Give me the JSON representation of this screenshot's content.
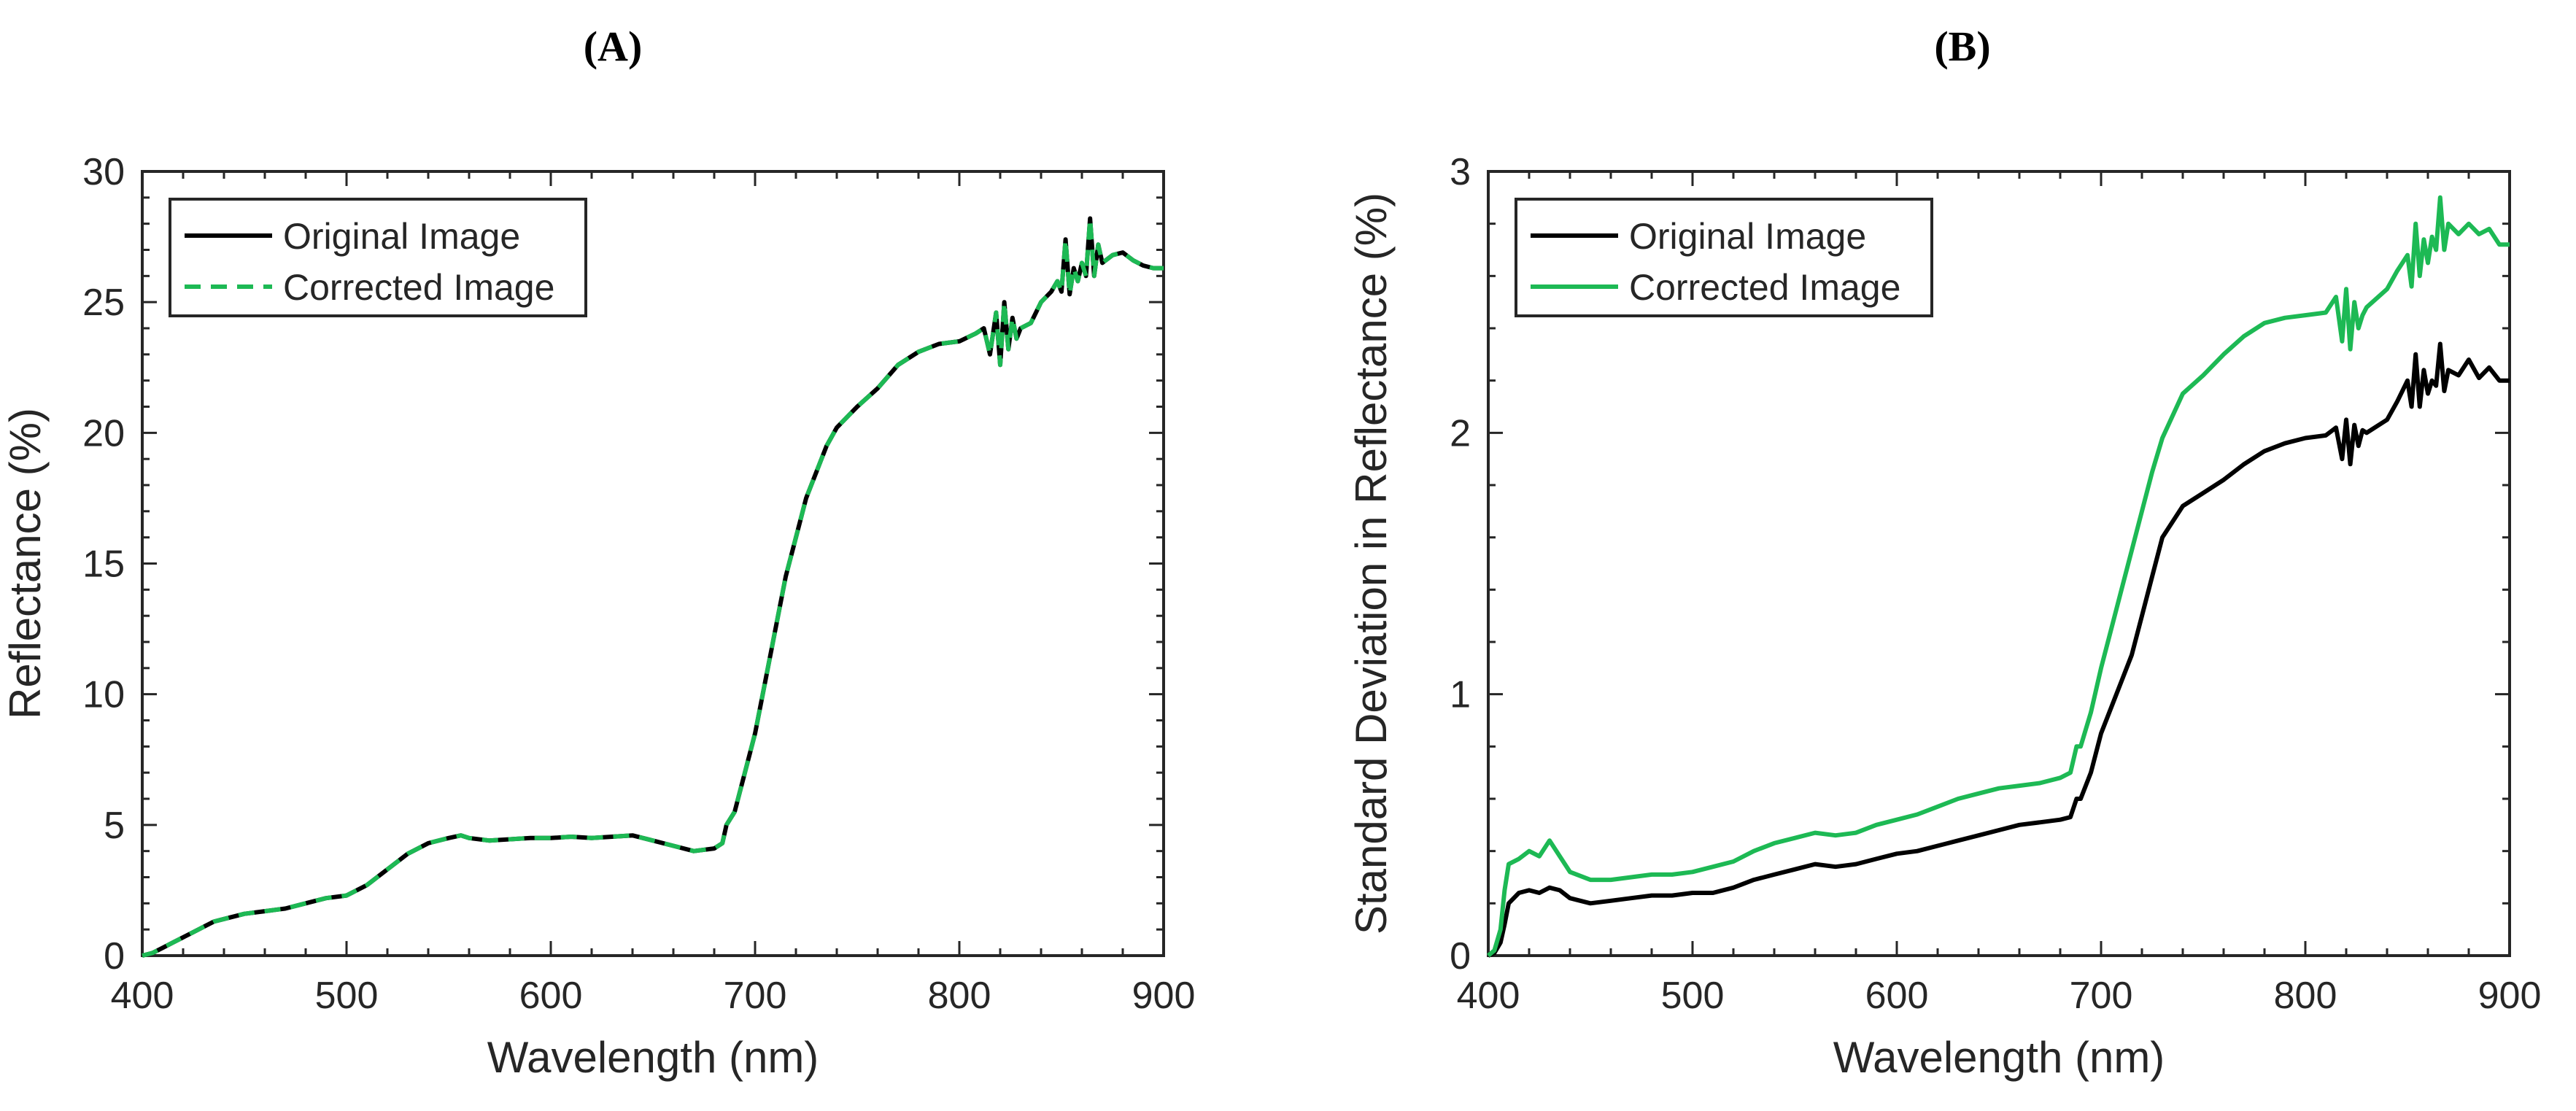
{
  "chart_data": [
    {
      "panel": "(A)",
      "type": "line",
      "title": "",
      "xlabel": "Wavelength (nm)",
      "ylabel": "Reflectance (%)",
      "xlim": [
        400,
        900
      ],
      "ylim": [
        0,
        30
      ],
      "xticks": [
        400,
        500,
        600,
        700,
        800,
        900
      ],
      "yticks": [
        0,
        5,
        10,
        15,
        20,
        25,
        30
      ],
      "legend_position": "top-left",
      "series": [
        {
          "name": "Original Image",
          "color": "#000000",
          "style": "solid",
          "x": [
            400,
            405,
            410,
            415,
            420,
            425,
            430,
            435,
            440,
            450,
            460,
            470,
            480,
            490,
            500,
            510,
            515,
            520,
            530,
            540,
            550,
            556,
            560,
            570,
            580,
            590,
            600,
            610,
            620,
            630,
            640,
            650,
            660,
            670,
            680,
            684,
            686,
            690,
            695,
            700,
            705,
            710,
            715,
            720,
            725,
            730,
            735,
            740,
            745,
            750,
            760,
            770,
            780,
            790,
            800,
            808,
            812,
            815,
            818,
            820,
            822,
            824,
            826,
            828,
            830,
            835,
            840,
            845,
            848,
            850,
            852,
            854,
            856,
            858,
            860,
            862,
            864,
            866,
            868,
            870,
            875,
            880,
            885,
            890,
            895,
            900
          ],
          "y": [
            0,
            0.1,
            0.3,
            0.5,
            0.7,
            0.9,
            1.1,
            1.3,
            1.4,
            1.6,
            1.7,
            1.8,
            2.0,
            2.2,
            2.3,
            2.7,
            3.0,
            3.3,
            3.9,
            4.3,
            4.5,
            4.6,
            4.5,
            4.4,
            4.45,
            4.5,
            4.5,
            4.55,
            4.5,
            4.55,
            4.6,
            4.4,
            4.2,
            4.0,
            4.1,
            4.3,
            5.0,
            5.5,
            7.0,
            8.5,
            10.5,
            12.5,
            14.5,
            16.0,
            17.5,
            18.5,
            19.5,
            20.2,
            20.6,
            21.0,
            21.7,
            22.6,
            23.1,
            23.4,
            23.5,
            23.8,
            24.0,
            23.0,
            24.6,
            22.6,
            25.0,
            23.2,
            24.4,
            23.6,
            24.0,
            24.2,
            25.0,
            25.4,
            25.8,
            25.4,
            27.4,
            25.3,
            26.3,
            25.8,
            26.5,
            26.0,
            28.2,
            26.0,
            27.2,
            26.5,
            26.8,
            26.9,
            26.6,
            26.4,
            26.3,
            26.3
          ]
        },
        {
          "name": "Corrected Image",
          "color": "#1db954",
          "style": "dashed",
          "x": [
            400,
            405,
            410,
            415,
            420,
            425,
            430,
            435,
            440,
            450,
            460,
            470,
            480,
            490,
            500,
            510,
            515,
            520,
            530,
            540,
            550,
            556,
            560,
            570,
            580,
            590,
            600,
            610,
            620,
            630,
            640,
            650,
            660,
            670,
            680,
            684,
            686,
            690,
            695,
            700,
            705,
            710,
            715,
            720,
            725,
            730,
            735,
            740,
            745,
            750,
            760,
            770,
            780,
            790,
            800,
            808,
            812,
            815,
            818,
            820,
            822,
            824,
            826,
            828,
            830,
            835,
            840,
            845,
            848,
            850,
            852,
            854,
            856,
            858,
            860,
            862,
            864,
            866,
            868,
            870,
            875,
            880,
            885,
            890,
            895,
            900
          ],
          "y": [
            0,
            0.1,
            0.3,
            0.5,
            0.7,
            0.9,
            1.1,
            1.3,
            1.4,
            1.6,
            1.7,
            1.8,
            2.0,
            2.2,
            2.3,
            2.7,
            3.0,
            3.3,
            3.9,
            4.3,
            4.5,
            4.6,
            4.5,
            4.4,
            4.45,
            4.5,
            4.5,
            4.55,
            4.5,
            4.55,
            4.6,
            4.4,
            4.2,
            4.0,
            4.1,
            4.3,
            5.0,
            5.5,
            7.0,
            8.5,
            10.5,
            12.5,
            14.5,
            16.0,
            17.5,
            18.5,
            19.5,
            20.2,
            20.6,
            21.0,
            21.7,
            22.6,
            23.1,
            23.4,
            23.5,
            23.8,
            24.0,
            23.0,
            24.6,
            22.6,
            25.0,
            23.2,
            24.4,
            23.6,
            24.0,
            24.2,
            25.0,
            25.4,
            25.8,
            25.4,
            27.4,
            25.3,
            26.3,
            25.8,
            26.5,
            26.0,
            28.2,
            26.0,
            27.2,
            26.5,
            26.8,
            26.9,
            26.6,
            26.4,
            26.3,
            26.3
          ]
        }
      ]
    },
    {
      "panel": "(B)",
      "type": "line",
      "title": "",
      "xlabel": "Wavelength (nm)",
      "ylabel": "Standard Deviation in Reflectance (%)",
      "xlim": [
        400,
        900
      ],
      "ylim": [
        0,
        3
      ],
      "xticks": [
        400,
        500,
        600,
        700,
        800,
        900
      ],
      "yticks": [
        0,
        1,
        2,
        3
      ],
      "legend_position": "top-left",
      "series": [
        {
          "name": "Original Image",
          "color": "#000000",
          "style": "solid",
          "x": [
            400,
            403,
            406,
            408,
            410,
            415,
            420,
            425,
            430,
            435,
            440,
            450,
            460,
            470,
            480,
            490,
            500,
            510,
            520,
            530,
            540,
            550,
            560,
            570,
            580,
            590,
            600,
            610,
            620,
            630,
            640,
            650,
            660,
            670,
            680,
            685,
            688,
            690,
            695,
            700,
            705,
            710,
            715,
            720,
            725,
            730,
            740,
            750,
            760,
            770,
            780,
            790,
            800,
            810,
            815,
            818,
            820,
            822,
            824,
            826,
            828,
            830,
            840,
            845,
            850,
            852,
            854,
            856,
            858,
            860,
            862,
            864,
            866,
            868,
            870,
            875,
            880,
            885,
            890,
            895,
            900
          ],
          "y": [
            0,
            0.01,
            0.05,
            0.12,
            0.2,
            0.24,
            0.25,
            0.24,
            0.26,
            0.25,
            0.22,
            0.2,
            0.21,
            0.22,
            0.23,
            0.23,
            0.24,
            0.24,
            0.26,
            0.29,
            0.31,
            0.33,
            0.35,
            0.34,
            0.35,
            0.37,
            0.39,
            0.4,
            0.42,
            0.44,
            0.46,
            0.48,
            0.5,
            0.51,
            0.52,
            0.53,
            0.6,
            0.6,
            0.7,
            0.85,
            0.95,
            1.05,
            1.15,
            1.3,
            1.45,
            1.6,
            1.72,
            1.77,
            1.82,
            1.88,
            1.93,
            1.96,
            1.98,
            1.99,
            2.02,
            1.9,
            2.05,
            1.88,
            2.03,
            1.95,
            2.01,
            2.0,
            2.05,
            2.12,
            2.2,
            2.1,
            2.3,
            2.1,
            2.24,
            2.15,
            2.2,
            2.18,
            2.34,
            2.16,
            2.24,
            2.22,
            2.28,
            2.21,
            2.25,
            2.2,
            2.2
          ]
        },
        {
          "name": "Corrected Image",
          "color": "#1db954",
          "style": "solid",
          "x": [
            400,
            403,
            406,
            408,
            410,
            415,
            420,
            425,
            430,
            435,
            440,
            450,
            460,
            470,
            480,
            490,
            500,
            510,
            520,
            530,
            540,
            550,
            560,
            570,
            580,
            590,
            600,
            610,
            620,
            630,
            640,
            650,
            660,
            670,
            680,
            685,
            688,
            690,
            695,
            700,
            705,
            710,
            715,
            720,
            725,
            730,
            740,
            750,
            760,
            770,
            780,
            790,
            800,
            810,
            815,
            818,
            820,
            822,
            824,
            826,
            828,
            830,
            840,
            845,
            850,
            852,
            854,
            856,
            858,
            860,
            862,
            864,
            866,
            868,
            870,
            875,
            880,
            885,
            890,
            895,
            900
          ],
          "y": [
            0,
            0.02,
            0.1,
            0.25,
            0.35,
            0.37,
            0.4,
            0.38,
            0.44,
            0.38,
            0.32,
            0.29,
            0.29,
            0.3,
            0.31,
            0.31,
            0.32,
            0.34,
            0.36,
            0.4,
            0.43,
            0.45,
            0.47,
            0.46,
            0.47,
            0.5,
            0.52,
            0.54,
            0.57,
            0.6,
            0.62,
            0.64,
            0.65,
            0.66,
            0.68,
            0.7,
            0.8,
            0.8,
            0.93,
            1.1,
            1.25,
            1.4,
            1.55,
            1.7,
            1.85,
            1.98,
            2.15,
            2.22,
            2.3,
            2.37,
            2.42,
            2.44,
            2.45,
            2.46,
            2.52,
            2.35,
            2.55,
            2.32,
            2.5,
            2.4,
            2.45,
            2.48,
            2.55,
            2.62,
            2.68,
            2.56,
            2.8,
            2.6,
            2.74,
            2.65,
            2.75,
            2.7,
            2.9,
            2.7,
            2.8,
            2.76,
            2.8,
            2.76,
            2.78,
            2.72,
            2.72
          ]
        }
      ]
    }
  ]
}
